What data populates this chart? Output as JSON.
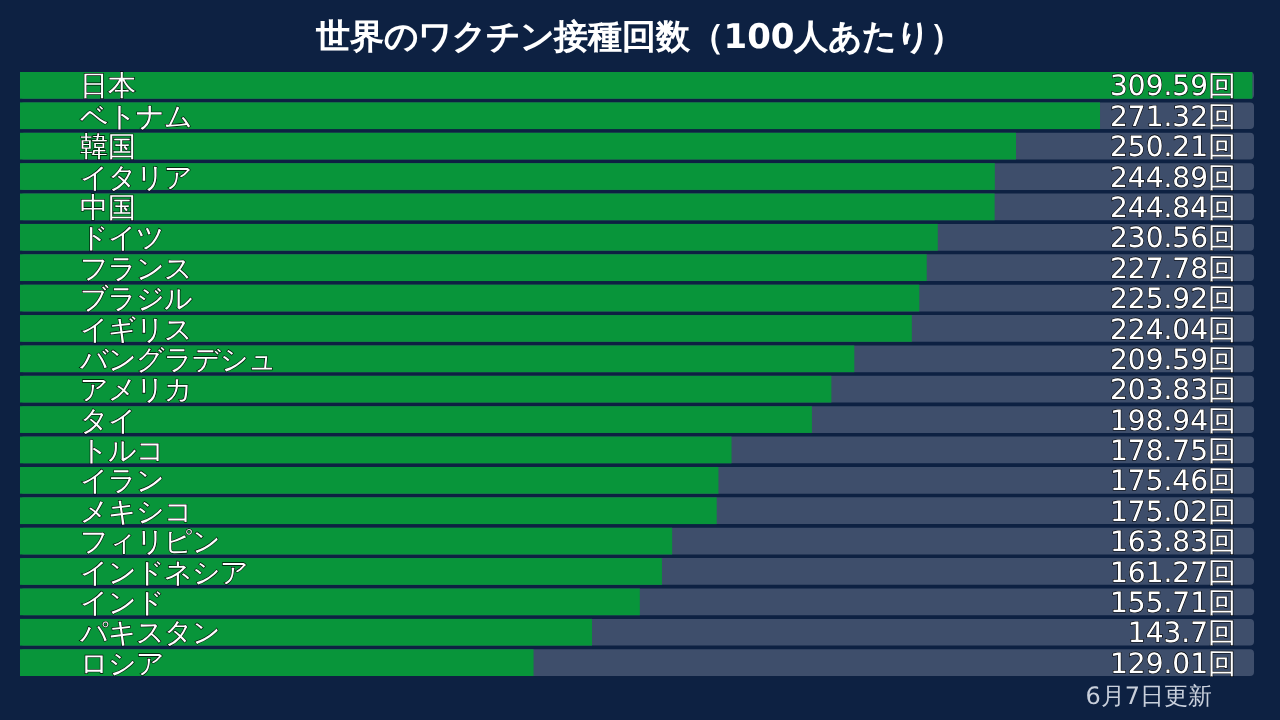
{
  "chart_data": {
    "type": "bar",
    "orientation": "horizontal",
    "title": "世界のワクチン接種回数（100人あたり）",
    "categories": [
      "日本",
      "ベトナム",
      "韓国",
      "イタリア",
      "中国",
      "ドイツ",
      "フランス",
      "ブラジル",
      "イギリス",
      "バングラデシュ",
      "アメリカ",
      "タイ",
      "トルコ",
      "イラン",
      "メキシコ",
      "フィリピン",
      "インドネシア",
      "インド",
      "パキスタン",
      "ロシア"
    ],
    "values": [
      309.59,
      271.32,
      250.21,
      244.89,
      244.84,
      230.56,
      227.78,
      225.92,
      224.04,
      209.59,
      203.83,
      198.94,
      178.75,
      175.46,
      175.02,
      163.83,
      161.27,
      155.71,
      143.7,
      129.01
    ],
    "value_labels": [
      "309.59回",
      "271.32回",
      "250.21回",
      "244.89回",
      "244.84回",
      "230.56回",
      "227.78回",
      "225.92回",
      "224.04回",
      "209.59回",
      "203.83回",
      "198.94回",
      "178.75回",
      "175.46回",
      "175.02回",
      "163.83回",
      "161.27回",
      "155.71回",
      "143.7回",
      "129.01回"
    ],
    "color": "#08953a",
    "xlim": [
      0,
      310
    ],
    "tick_labels": false,
    "annotations": [
      "6月7日更新"
    ]
  }
}
